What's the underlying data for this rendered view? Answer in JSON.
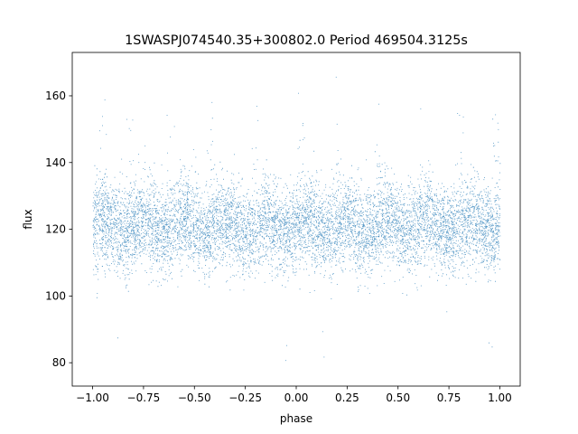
{
  "chart_data": {
    "type": "scatter",
    "title": "1SWASPJ074540.35+300802.0 Period 469504.3125s",
    "xlabel": "phase",
    "ylabel": "flux",
    "xlim": [
      -1.1,
      1.1
    ],
    "ylim": [
      73,
      173
    ],
    "xticks": [
      -1.0,
      -0.75,
      -0.5,
      -0.25,
      0.0,
      0.25,
      0.5,
      0.75,
      1.0
    ],
    "xtick_labels": [
      "−1.00",
      "−0.75",
      "−0.50",
      "−0.25",
      "0.00",
      "0.25",
      "0.50",
      "0.75",
      "1.00"
    ],
    "yticks": [
      80,
      100,
      120,
      140,
      160
    ],
    "ytick_labels": [
      "80",
      "100",
      "120",
      "140",
      "160"
    ],
    "grid": false,
    "marker_color": "#1f77b4",
    "baseline_flux": 121,
    "typical_range": [
      110,
      136
    ],
    "dip_flux": 86,
    "dip_phases": [
      -0.87,
      -0.05,
      0.13,
      0.95
    ],
    "peak_phases": [
      -0.95,
      -0.82,
      -0.62,
      -0.42,
      -0.2,
      0.02,
      0.2,
      0.4,
      0.6,
      0.8,
      0.98
    ],
    "x_range": [
      -1.0,
      1.0
    ]
  }
}
